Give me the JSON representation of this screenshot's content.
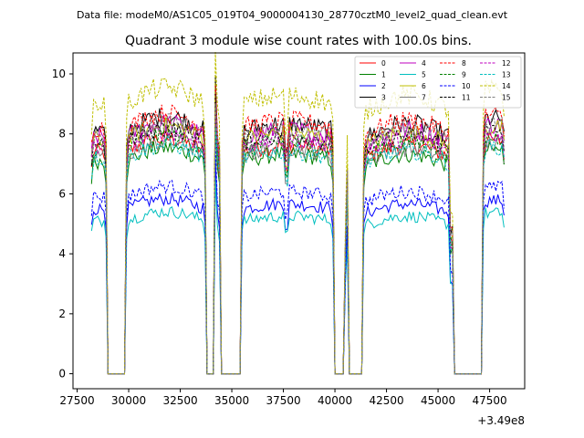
{
  "chart_data": {
    "type": "line",
    "suptitle": "Data file: modeM0/AS1C05_019T04_9000004130_28770cztM0_level2_quad_clean.evt",
    "title": "Quadrant 3 module wise count rates with 100.0s bins.",
    "xlabel": "",
    "ylabel": "",
    "x_offset_label": "+3.49e8",
    "xlim": [
      27300,
      49200
    ],
    "ylim": [
      -0.5,
      10.7
    ],
    "xticks": [
      27500,
      30000,
      32500,
      35000,
      37500,
      40000,
      42500,
      45000,
      47500
    ],
    "xtick_labels": [
      "27500",
      "30000",
      "32500",
      "35000",
      "37500",
      "40000",
      "42500",
      "45000",
      "47500"
    ],
    "yticks": [
      0,
      2,
      4,
      6,
      8,
      10
    ],
    "ytick_labels": [
      "0",
      "2",
      "4",
      "6",
      "8",
      "10"
    ],
    "legend_position": "top-right",
    "bin_seconds": 100,
    "x_start": 28200,
    "x_end": 48200,
    "on_intervals": [
      [
        28200,
        28900
      ],
      [
        29900,
        33700
      ],
      [
        34200,
        34400
      ],
      [
        35500,
        39900
      ],
      [
        40500,
        40600
      ],
      [
        41400,
        45700
      ],
      [
        47200,
        48200
      ]
    ],
    "spikes": [
      [
        34200,
        9.6
      ],
      [
        40500,
        4.2
      ]
    ],
    "series": [
      {
        "name": "0",
        "color": "#ff0000",
        "style": "solid",
        "level": 7.4
      },
      {
        "name": "1",
        "color": "#008000",
        "style": "solid",
        "level": 7.1
      },
      {
        "name": "2",
        "color": "#0000ff",
        "style": "solid",
        "level": 5.5
      },
      {
        "name": "3",
        "color": "#000000",
        "style": "solid",
        "level": 8.1
      },
      {
        "name": "4",
        "color": "#bf00bf",
        "style": "solid",
        "level": 7.9
      },
      {
        "name": "5",
        "color": "#00bfbf",
        "style": "solid",
        "level": 5.1
      },
      {
        "name": "6",
        "color": "#bfbf00",
        "style": "solid",
        "level": 7.8
      },
      {
        "name": "7",
        "color": "#808080",
        "style": "solid",
        "level": 7.3
      },
      {
        "name": "8",
        "color": "#ff0000",
        "style": "dashed",
        "level": 8.2
      },
      {
        "name": "9",
        "color": "#008000",
        "style": "dashed",
        "level": 7.5
      },
      {
        "name": "10",
        "color": "#0000ff",
        "style": "dashed",
        "level": 5.9
      },
      {
        "name": "11",
        "color": "#000000",
        "style": "dashed",
        "level": 7.7
      },
      {
        "name": "12",
        "color": "#bf00bf",
        "style": "dashed",
        "level": 7.6
      },
      {
        "name": "13",
        "color": "#00bfbf",
        "style": "dashed",
        "level": 7.2
      },
      {
        "name": "14",
        "color": "#bfbf00",
        "style": "dashed",
        "level": 9.0
      },
      {
        "name": "15",
        "color": "#808080",
        "style": "dashed",
        "level": 7.9
      }
    ]
  }
}
